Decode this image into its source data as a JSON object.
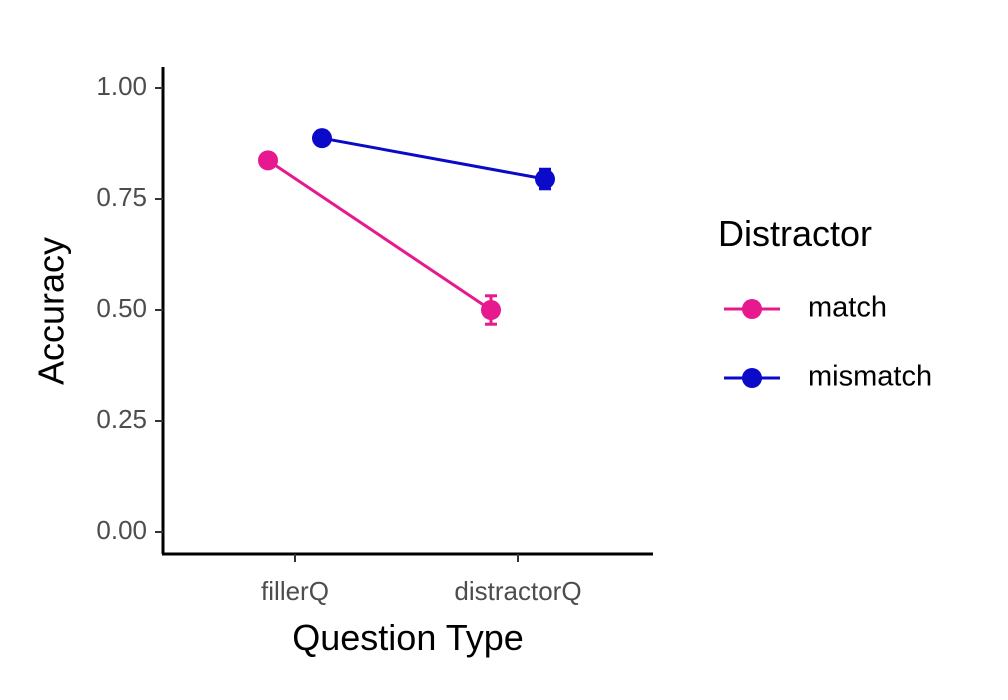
{
  "chart_data": {
    "type": "line",
    "title": "",
    "xlabel": "Question Type",
    "ylabel": "Accuracy",
    "categories": [
      "fillerQ",
      "distractorQ"
    ],
    "ylim": [
      0,
      1
    ],
    "yticks": [
      "0.00",
      "0.25",
      "0.50",
      "0.75",
      "1.00"
    ],
    "ytick_values": [
      0,
      0.25,
      0.5,
      0.75,
      1.0
    ],
    "legend": {
      "title": "Distractor",
      "placement": "right"
    },
    "grid": false,
    "series": [
      {
        "name": "match",
        "color": "#e7198f",
        "values": [
          0.837,
          0.5
        ],
        "error": [
          0.008,
          0.032
        ]
      },
      {
        "name": "mismatch",
        "color": "#0a0ac8",
        "values": [
          0.887,
          0.795
        ],
        "error": [
          0.006,
          0.022
        ]
      }
    ]
  }
}
